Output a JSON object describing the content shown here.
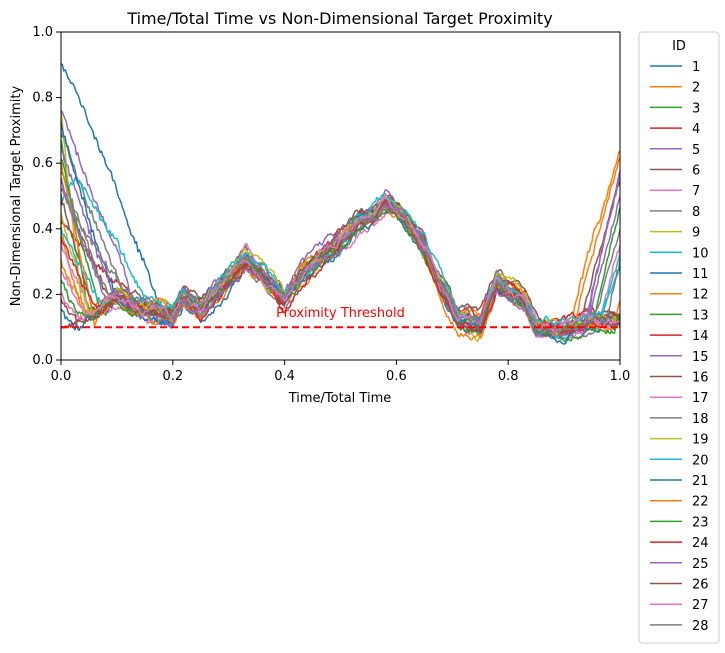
{
  "chart_data": {
    "type": "line",
    "title": "Time/Total Time vs Non-Dimensional Target Proximity",
    "xlabel": "Time/Total Time",
    "ylabel": "Non-Dimensional Target Proximity",
    "xlim": [
      0.0,
      1.0
    ],
    "ylim": [
      0.0,
      1.0
    ],
    "xticks": [
      "0.0",
      "0.2",
      "0.4",
      "0.6",
      "0.8",
      "1.0"
    ],
    "yticks": [
      "0.0",
      "0.2",
      "0.4",
      "0.6",
      "0.8",
      "1.0"
    ],
    "grid": false,
    "legend": {
      "title": "ID",
      "placement": "outside-right"
    },
    "threshold": {
      "value": 0.1,
      "label": "Proximity Threshold",
      "color": "#ff0000",
      "style": "dashed"
    },
    "common_trend": {
      "x": [
        0.0,
        0.05,
        0.1,
        0.15,
        0.2,
        0.22,
        0.25,
        0.3,
        0.33,
        0.36,
        0.4,
        0.43,
        0.47,
        0.5,
        0.53,
        0.56,
        0.58,
        0.6,
        0.62,
        0.65,
        0.68,
        0.71,
        0.75,
        0.78,
        0.8,
        0.83,
        0.85,
        0.88,
        0.9,
        0.92,
        0.95,
        0.97,
        1.0
      ],
      "y": [
        0.1,
        0.14,
        0.19,
        0.16,
        0.14,
        0.2,
        0.16,
        0.24,
        0.3,
        0.26,
        0.18,
        0.26,
        0.32,
        0.36,
        0.42,
        0.44,
        0.48,
        0.46,
        0.42,
        0.34,
        0.22,
        0.13,
        0.11,
        0.24,
        0.21,
        0.18,
        0.1,
        0.09,
        0.09,
        0.1,
        0.12,
        0.12,
        0.12
      ]
    },
    "series": [
      {
        "name": "1",
        "color": "#1f77b4",
        "start": 0.9,
        "peak": 0.95,
        "end": 0.11,
        "rise": 0.99,
        "reach": 0.18
      },
      {
        "name": "2",
        "color": "#ff7f0e",
        "start": 0.4,
        "peak": 0.4,
        "end": 0.64,
        "rise": 0.91,
        "reach": 0.04
      },
      {
        "name": "3",
        "color": "#2ca02c",
        "start": 0.68,
        "peak": 0.68,
        "end": 0.14,
        "rise": 0.99,
        "reach": 0.05
      },
      {
        "name": "4",
        "color": "#d62728",
        "start": 0.43,
        "peak": 0.43,
        "end": 0.1,
        "rise": 0.99,
        "reach": 0.12
      },
      {
        "name": "5",
        "color": "#9467bd",
        "start": 0.76,
        "peak": 0.77,
        "end": 0.58,
        "rise": 0.94,
        "reach": 0.13
      },
      {
        "name": "6",
        "color": "#8c564b",
        "start": 0.55,
        "peak": 0.55,
        "end": 0.14,
        "rise": 0.99,
        "reach": 0.08
      },
      {
        "name": "7",
        "color": "#e377c2",
        "start": 0.35,
        "peak": 0.35,
        "end": 0.35,
        "rise": 0.96,
        "reach": 0.06
      },
      {
        "name": "8",
        "color": "#7f7f7f",
        "start": 0.7,
        "peak": 0.7,
        "end": 0.14,
        "rise": 0.99,
        "reach": 0.12
      },
      {
        "name": "9",
        "color": "#bcbd22",
        "start": 0.76,
        "peak": 0.76,
        "end": 0.12,
        "rise": 0.99,
        "reach": 0.04
      },
      {
        "name": "10",
        "color": "#17becf",
        "start": 0.47,
        "peak": 0.66,
        "end": 0.32,
        "rise": 0.965,
        "reach": 0.16
      },
      {
        "name": "11",
        "color": "#1f77b4",
        "start": 0.72,
        "peak": 0.72,
        "end": 0.12,
        "rise": 0.99,
        "reach": 0.1
      },
      {
        "name": "12",
        "color": "#ff7f0e",
        "start": 0.3,
        "peak": 0.3,
        "end": 0.62,
        "rise": 0.92,
        "reach": 0.05
      },
      {
        "name": "13",
        "color": "#2ca02c",
        "start": 0.62,
        "peak": 0.62,
        "end": 0.46,
        "rise": 0.95,
        "reach": 0.07
      },
      {
        "name": "14",
        "color": "#d62728",
        "start": 0.1,
        "peak": 0.1,
        "end": 0.12,
        "rise": 0.99,
        "reach": 0.02
      },
      {
        "name": "15",
        "color": "#9467bd",
        "start": 0.65,
        "peak": 0.65,
        "end": 0.5,
        "rise": 0.945,
        "reach": 0.1
      },
      {
        "name": "16",
        "color": "#8c564b",
        "start": 0.5,
        "peak": 0.5,
        "end": 0.55,
        "rise": 0.93,
        "reach": 0.06
      },
      {
        "name": "17",
        "color": "#e377c2",
        "start": 0.2,
        "peak": 0.2,
        "end": 0.12,
        "rise": 0.99,
        "reach": 0.04
      },
      {
        "name": "18",
        "color": "#7f7f7f",
        "start": 0.58,
        "peak": 0.58,
        "end": 0.4,
        "rise": 0.955,
        "reach": 0.09
      },
      {
        "name": "19",
        "color": "#bcbd22",
        "start": 0.45,
        "peak": 0.45,
        "end": 0.12,
        "rise": 0.99,
        "reach": 0.05
      },
      {
        "name": "20",
        "color": "#17becf",
        "start": 0.4,
        "peak": 0.4,
        "end": 0.28,
        "rise": 0.97,
        "reach": 0.08
      },
      {
        "name": "21",
        "color": "#1f77b4",
        "start": 0.15,
        "peak": 0.15,
        "end": 0.12,
        "rise": 0.99,
        "reach": 0.03
      },
      {
        "name": "22",
        "color": "#ff7f0e",
        "start": 0.6,
        "peak": 0.6,
        "end": 0.18,
        "rise": 0.985,
        "reach": 0.06
      },
      {
        "name": "23",
        "color": "#2ca02c",
        "start": 0.25,
        "peak": 0.25,
        "end": 0.14,
        "rise": 0.99,
        "reach": 0.04
      },
      {
        "name": "24",
        "color": "#d62728",
        "start": 0.38,
        "peak": 0.38,
        "end": 0.12,
        "rise": 0.99,
        "reach": 0.07
      },
      {
        "name": "25",
        "color": "#9467bd",
        "start": 0.55,
        "peak": 0.55,
        "end": 0.56,
        "rise": 0.935,
        "reach": 0.08
      },
      {
        "name": "26",
        "color": "#8c564b",
        "start": 0.18,
        "peak": 0.18,
        "end": 0.13,
        "rise": 0.99,
        "reach": 0.03
      },
      {
        "name": "27",
        "color": "#e377c2",
        "start": 0.28,
        "peak": 0.28,
        "end": 0.12,
        "rise": 0.99,
        "reach": 0.05
      },
      {
        "name": "28",
        "color": "#7f7f7f",
        "start": 0.52,
        "peak": 0.52,
        "end": 0.3,
        "rise": 0.975,
        "reach": 0.13
      }
    ]
  }
}
